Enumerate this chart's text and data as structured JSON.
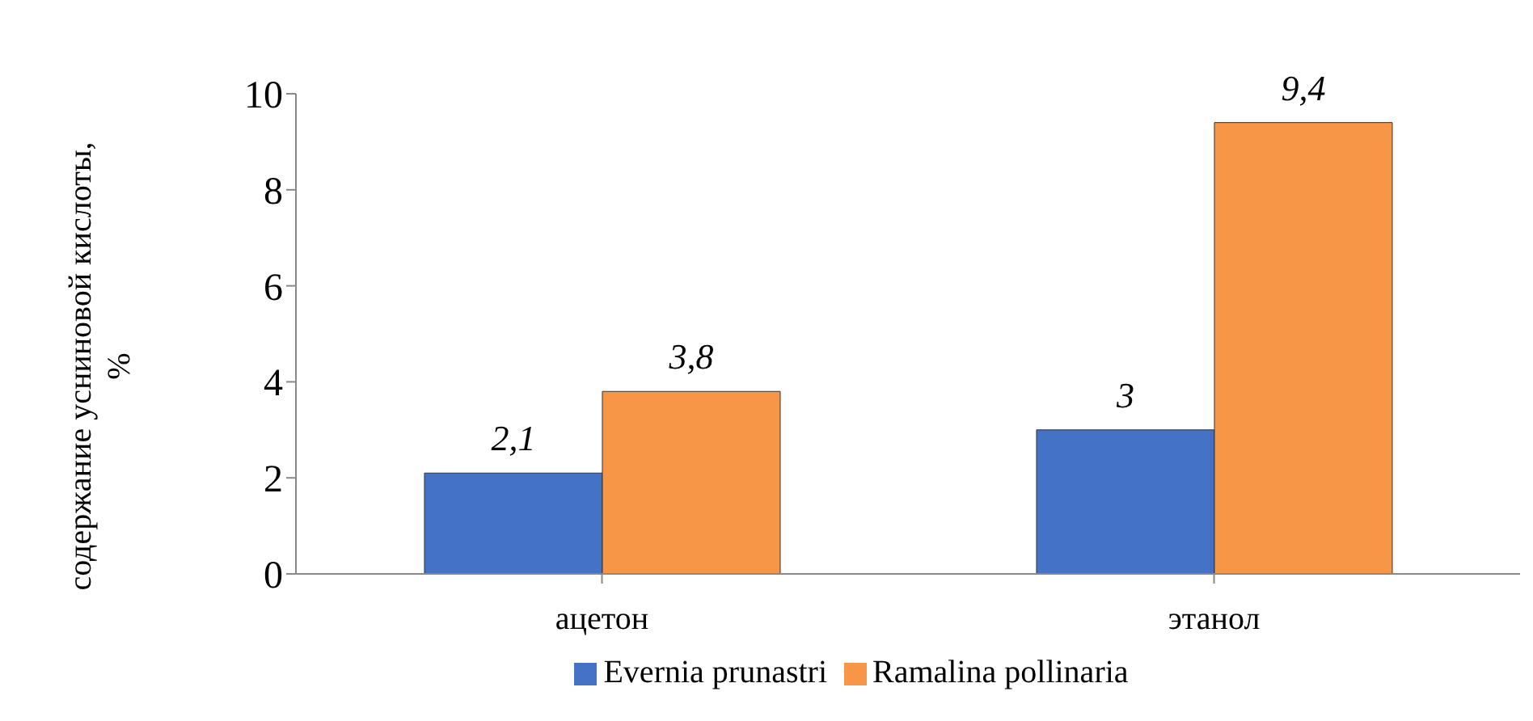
{
  "chart_data": {
    "type": "bar",
    "ylabel": "содержание усниновой кислоты, %",
    "categories": [
      "ацетон",
      "этанол"
    ],
    "series": [
      {
        "name": "Evernia prunastri",
        "color": "#4472c4",
        "values": [
          2.1,
          3
        ],
        "value_labels": [
          "2,1",
          "3"
        ]
      },
      {
        "name": "Ramalina pollinaria",
        "color": "#f79646",
        "values": [
          3.8,
          9.4
        ],
        "value_labels": [
          "3,8",
          "9,4"
        ]
      }
    ],
    "ylim": [
      0,
      10
    ],
    "yticks": [
      0,
      2,
      4,
      6,
      8,
      10
    ],
    "grid": false,
    "legend": "bottom"
  }
}
